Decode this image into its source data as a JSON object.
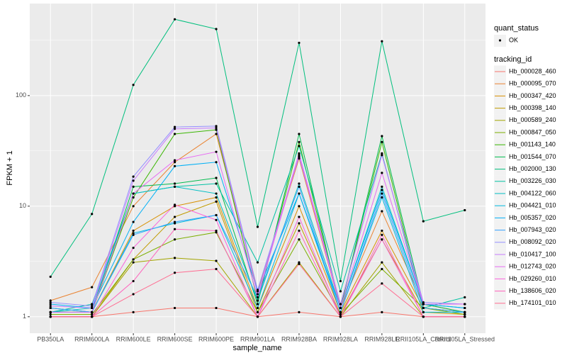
{
  "chart_data": {
    "type": "line",
    "x_label": "sample_name",
    "y_label": "FPKM + 1",
    "categories": [
      "PB350LA",
      "RRIM600LA",
      "RRIM600LE",
      "RRIM600SE",
      "RRIM600PE",
      "RRIM901LA",
      "RRIM928BA",
      "RRIM928LA",
      "RRIM928LE",
      "RRII105LA_Control",
      "RRII105LA_Stressed"
    ],
    "ylim": [
      0.71,
      680
    ],
    "yticks": [
      1,
      10,
      100
    ],
    "log_scale": true,
    "grid": true,
    "point_legend": {
      "title": "quant_status",
      "labels": [
        "OK"
      ],
      "color": "#000000"
    },
    "legend": {
      "title": "tracking_id",
      "position": "right"
    },
    "series": [
      {
        "name": "Hb_000028_460",
        "color": "#F8766D",
        "values": [
          1.0,
          1.0,
          1.1,
          1.2,
          1.2,
          1.0,
          1.1,
          1.0,
          1.1,
          1.0,
          1.0
        ]
      },
      {
        "name": "Hb_000095_070",
        "color": "#EA8331",
        "values": [
          1.4,
          1.85,
          10,
          25,
          45,
          1.7,
          27,
          1.2,
          9,
          1.3,
          1.1
        ]
      },
      {
        "name": "Hb_000347_420",
        "color": "#D89000",
        "values": [
          1.1,
          1.1,
          6,
          10,
          12,
          1.2,
          10,
          1.1,
          6,
          1.2,
          1.1
        ]
      },
      {
        "name": "Hb_000398_140",
        "color": "#C09B00",
        "values": [
          1.0,
          1.0,
          3.3,
          8,
          11,
          1.1,
          7,
          1.05,
          5,
          1.1,
          1.05
        ]
      },
      {
        "name": "Hb_000589_240",
        "color": "#A3A500",
        "values": [
          1.0,
          1.0,
          3.1,
          3.4,
          3.2,
          1.0,
          3.1,
          1.0,
          3.1,
          1.0,
          1.0
        ]
      },
      {
        "name": "Hb_000847_050",
        "color": "#7CAE00",
        "values": [
          1.05,
          1.05,
          3.3,
          5,
          5.8,
          1.1,
          5,
          1.05,
          2.7,
          1.2,
          1.05
        ]
      },
      {
        "name": "Hb_001143_140",
        "color": "#39B600",
        "values": [
          1.1,
          1.1,
          12,
          45,
          49,
          1.4,
          38,
          1.2,
          38,
          1.2,
          1.1
        ]
      },
      {
        "name": "Hb_001544_070",
        "color": "#00BB4E",
        "values": [
          1.2,
          1.1,
          15,
          16,
          18,
          1.3,
          45,
          1.2,
          43,
          1.3,
          1.1
        ]
      },
      {
        "name": "Hb_002000_130",
        "color": "#00BF7D",
        "values": [
          2.3,
          8.5,
          125,
          490,
          400,
          6.5,
          300,
          2.1,
          310,
          7.3,
          9.2
        ]
      },
      {
        "name": "Hb_003226_030",
        "color": "#00C1A3",
        "values": [
          1.1,
          1.3,
          13,
          15,
          16,
          3.1,
          35,
          1.7,
          30,
          1.2,
          1.5
        ]
      },
      {
        "name": "Hb_004122_060",
        "color": "#00BFC4",
        "values": [
          1.1,
          1.2,
          13,
          15,
          13,
          1.4,
          16,
          1.2,
          15,
          1.3,
          1.2
        ]
      },
      {
        "name": "Hb_004421_010",
        "color": "#00BAE0",
        "values": [
          1.1,
          1.1,
          5.7,
          7,
          8.3,
          1.2,
          13,
          1.1,
          12,
          1.1,
          1.1
        ]
      },
      {
        "name": "Hb_005357_020",
        "color": "#00B0F6",
        "values": [
          1.3,
          1.2,
          7.2,
          23,
          25,
          1.7,
          13,
          1.2,
          14,
          1.3,
          1.2
        ]
      },
      {
        "name": "Hb_007943_020",
        "color": "#35A2FF",
        "values": [
          1.2,
          1.1,
          5.5,
          7.2,
          8.3,
          1.5,
          15,
          1.1,
          13,
          1.2,
          1.1
        ]
      },
      {
        "name": "Hb_008092_020",
        "color": "#9590FF",
        "values": [
          1.35,
          1.25,
          18.5,
          52,
          53,
          1.75,
          28,
          1.3,
          29,
          1.35,
          1.3
        ]
      },
      {
        "name": "Hb_010417_100",
        "color": "#C77CFF",
        "values": [
          1.25,
          1.2,
          17,
          50,
          51,
          1.6,
          30,
          1.3,
          29,
          1.3,
          1.3
        ]
      },
      {
        "name": "Hb_012743_020",
        "color": "#E76BF3",
        "values": [
          1.1,
          1.1,
          13,
          26,
          31,
          1.5,
          29,
          1.2,
          20,
          1.3,
          1.3
        ]
      },
      {
        "name": "Hb_029260_010",
        "color": "#FA62DB",
        "values": [
          1.0,
          1.0,
          4.2,
          10.3,
          7.5,
          1.0,
          8,
          1.0,
          5,
          1.0,
          1.0
        ]
      },
      {
        "name": "Hb_138606_020",
        "color": "#FF62BC",
        "values": [
          1.0,
          1.0,
          2.1,
          6.2,
          6,
          1.0,
          6,
          1.0,
          5.5,
          1.0,
          1.0
        ]
      },
      {
        "name": "Hb_174101_010",
        "color": "#FF6C91",
        "values": [
          1.0,
          1.0,
          1.6,
          2.5,
          2.7,
          1.0,
          3,
          1.0,
          2,
          1.0,
          1.0
        ]
      }
    ]
  }
}
